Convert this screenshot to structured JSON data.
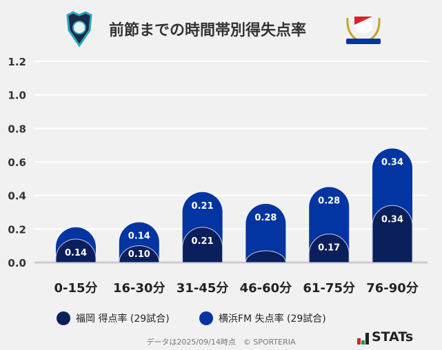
{
  "title": "前節までの時間帯別得失点率",
  "logos": {
    "left": "Avispa Fukuoka crest",
    "right": "Yokohama F·Marinos crest"
  },
  "chart_data": {
    "type": "bar",
    "stacked": true,
    "categories": [
      "0-15分",
      "16-30分",
      "31-45分",
      "46-60分",
      "61-75分",
      "76-90分"
    ],
    "series": [
      {
        "name": "福岡 得点率 (29試合)",
        "color": "#0b1f5c",
        "values": [
          0.14,
          0.1,
          0.21,
          0.07,
          0.17,
          0.34
        ],
        "labels": [
          "0.14",
          "0.10",
          "0.21",
          "",
          "0.17",
          "0.34"
        ]
      },
      {
        "name": "横浜FM 失点率 (29試合)",
        "color": "#0235a1",
        "values": [
          0.07,
          0.14,
          0.21,
          0.28,
          0.28,
          0.34
        ],
        "labels": [
          "",
          "0.14",
          "0.21",
          "0.28",
          "0.28",
          "0.34"
        ]
      }
    ],
    "ylim": [
      0,
      1.2
    ],
    "yticks": [
      "0.0",
      "0.2",
      "0.4",
      "0.6",
      "0.8",
      "1.0",
      "1.2"
    ],
    "grid": true,
    "legend": "bottom"
  },
  "footer": "データは2025/09/14時点　© SPORTERIA",
  "brand": "STATs"
}
